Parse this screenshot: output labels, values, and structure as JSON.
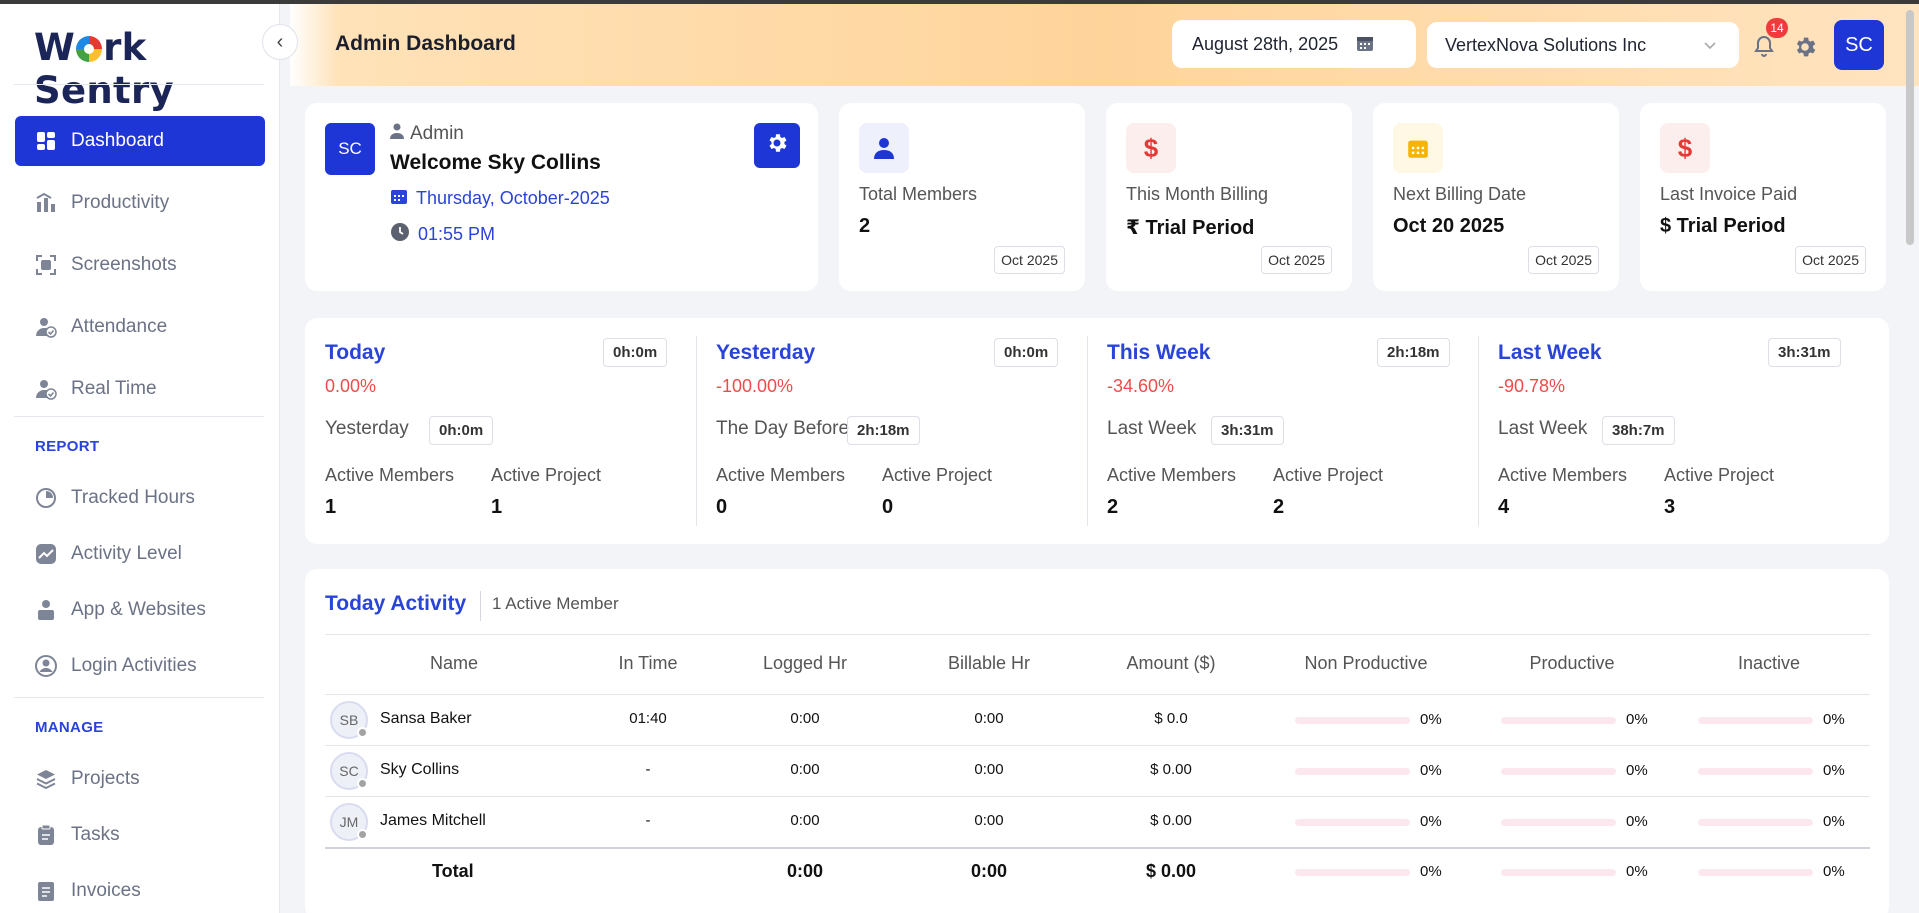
{
  "app": {
    "logo": "Work Sentry"
  },
  "sidebar": {
    "items": [
      {
        "label": "Dashboard"
      },
      {
        "label": "Productivity"
      },
      {
        "label": "Screenshots"
      },
      {
        "label": "Attendance"
      },
      {
        "label": "Real Time"
      }
    ],
    "report_title": "REPORT",
    "report_items": [
      {
        "label": "Tracked Hours"
      },
      {
        "label": "Activity Level"
      },
      {
        "label": "App & Websites"
      },
      {
        "label": "Login Activities"
      }
    ],
    "manage_title": "MANAGE",
    "manage_items": [
      {
        "label": "Projects"
      },
      {
        "label": "Tasks"
      },
      {
        "label": "Invoices"
      }
    ]
  },
  "header": {
    "title": "Admin Dashboard",
    "date": "August 28th, 2025",
    "organization": "VertexNova Solutions Inc",
    "notification_count": "14",
    "avatar": "SC"
  },
  "welcome": {
    "initials": "SC",
    "role": "Admin",
    "greeting": "Welcome Sky Collins",
    "date": "Thursday, October-2025",
    "time": "01:55 PM"
  },
  "stats": [
    {
      "label": "Total Members",
      "value": "2",
      "tag": "Oct 2025",
      "icon": "user-icon",
      "icon_color": "#1f36d6",
      "bg": "#eef0fb"
    },
    {
      "label": "This Month Billing",
      "value": "₹ Trial Period",
      "tag": "Oct 2025",
      "icon": "dollar-icon",
      "icon_color": "#e53935",
      "bg": "#fdeeee"
    },
    {
      "label": "Next Billing Date",
      "value": "Oct 20 2025",
      "tag": "Oct 2025",
      "icon": "calendar-icon",
      "icon_color": "#f4b400",
      "bg": "#fff8e5"
    },
    {
      "label": "Last Invoice Paid",
      "value": "$ Trial Period",
      "tag": "Oct 2025",
      "icon": "dollar-icon",
      "icon_color": "#e53935",
      "bg": "#fdeeee"
    }
  ],
  "periods": [
    {
      "title": "Today",
      "badge": "0h:0m",
      "pct": "0.00%",
      "cmp_label": "Yesterday",
      "cmp_value": "0h:0m",
      "members_label": "Active Members",
      "members": "1",
      "project_label": "Active Project",
      "projects": "1"
    },
    {
      "title": "Yesterday",
      "badge": "0h:0m",
      "pct": "-100.00%",
      "cmp_label": "The Day Before",
      "cmp_value": "2h:18m",
      "members_label": "Active Members",
      "members": "0",
      "project_label": "Active Project",
      "projects": "0"
    },
    {
      "title": "This Week",
      "badge": "2h:18m",
      "pct": "-34.60%",
      "cmp_label": "Last Week",
      "cmp_value": "3h:31m",
      "members_label": "Active Members",
      "members": "2",
      "project_label": "Active Project",
      "projects": "2"
    },
    {
      "title": "Last Week",
      "badge": "3h:31m",
      "pct": "-90.78%",
      "cmp_label": "Last Week",
      "cmp_value": "38h:7m",
      "members_label": "Active Members",
      "members": "4",
      "project_label": "Active Project",
      "projects": "3"
    }
  ],
  "activity": {
    "title": "Today Activity",
    "subtitle": "1 Active Member",
    "columns": [
      "Name",
      "In Time",
      "Logged Hr",
      "Billable Hr",
      "Amount ($)",
      "Non Productive",
      "Productive",
      "Inactive"
    ],
    "rows": [
      {
        "initials": "SB",
        "name": "Sansa Baker",
        "in_time": "01:40",
        "logged": "0:00",
        "billable": "0:00",
        "amount": "$ 0.0",
        "non_productive": "0%",
        "productive": "0%",
        "inactive": "0%"
      },
      {
        "initials": "SC",
        "name": "Sky Collins",
        "in_time": "-",
        "logged": "0:00",
        "billable": "0:00",
        "amount": "$ 0.00",
        "non_productive": "0%",
        "productive": "0%",
        "inactive": "0%"
      },
      {
        "initials": "JM",
        "name": "James Mitchell",
        "in_time": "-",
        "logged": "0:00",
        "billable": "0:00",
        "amount": "$ 0.00",
        "non_productive": "0%",
        "productive": "0%",
        "inactive": "0%"
      }
    ],
    "total": {
      "label": "Total",
      "logged": "0:00",
      "billable": "0:00",
      "amount": "$ 0.00",
      "non_productive": "0%",
      "productive": "0%",
      "inactive": "0%"
    }
  }
}
